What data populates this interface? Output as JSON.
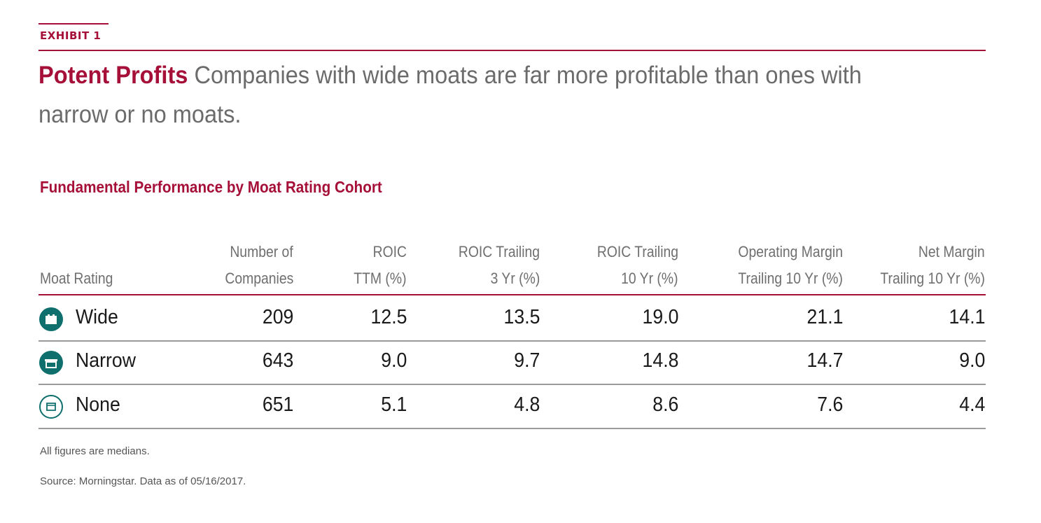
{
  "exhibit_label": "EXHIBIT 1",
  "headline": {
    "lead": "Potent Profits",
    "text": "Companies with wide moats are far more profitable than ones with narrow or no moats."
  },
  "chart_data": {
    "type": "table",
    "title": "Fundamental Performance by Moat Rating Cohort",
    "columns": [
      {
        "line1": "",
        "line2": "Moat Rating"
      },
      {
        "line1": "Number of",
        "line2": "Companies"
      },
      {
        "line1": "ROIC",
        "line2": "TTM (%)"
      },
      {
        "line1": "ROIC Trailing",
        "line2": "3 Yr (%)"
      },
      {
        "line1": "ROIC Trailing",
        "line2": "10 Yr (%)"
      },
      {
        "line1": "Operating Margin",
        "line2": "Trailing 10 Yr (%)"
      },
      {
        "line1": "Net Margin",
        "line2": "Trailing 10 Yr (%)"
      }
    ],
    "rows": [
      {
        "rating": "Wide",
        "icon": "wide-moat-icon",
        "values": [
          "209",
          "12.5",
          "13.5",
          "19.0",
          "21.1",
          "14.1"
        ]
      },
      {
        "rating": "Narrow",
        "icon": "narrow-moat-icon",
        "values": [
          "643",
          "9.0",
          "9.7",
          "14.8",
          "14.7",
          "9.0"
        ]
      },
      {
        "rating": "None",
        "icon": "no-moat-icon",
        "values": [
          "651",
          "5.1",
          "4.8",
          "8.6",
          "7.6",
          "4.4"
        ]
      }
    ]
  },
  "footnotes": {
    "note": "All figures are medians.",
    "source": "Source: Morningstar. Data as of 05/16/2017."
  },
  "colors": {
    "accent": "#a50f38",
    "icon_teal": "#0e6f6d",
    "body_text": "#6b6b6b"
  }
}
